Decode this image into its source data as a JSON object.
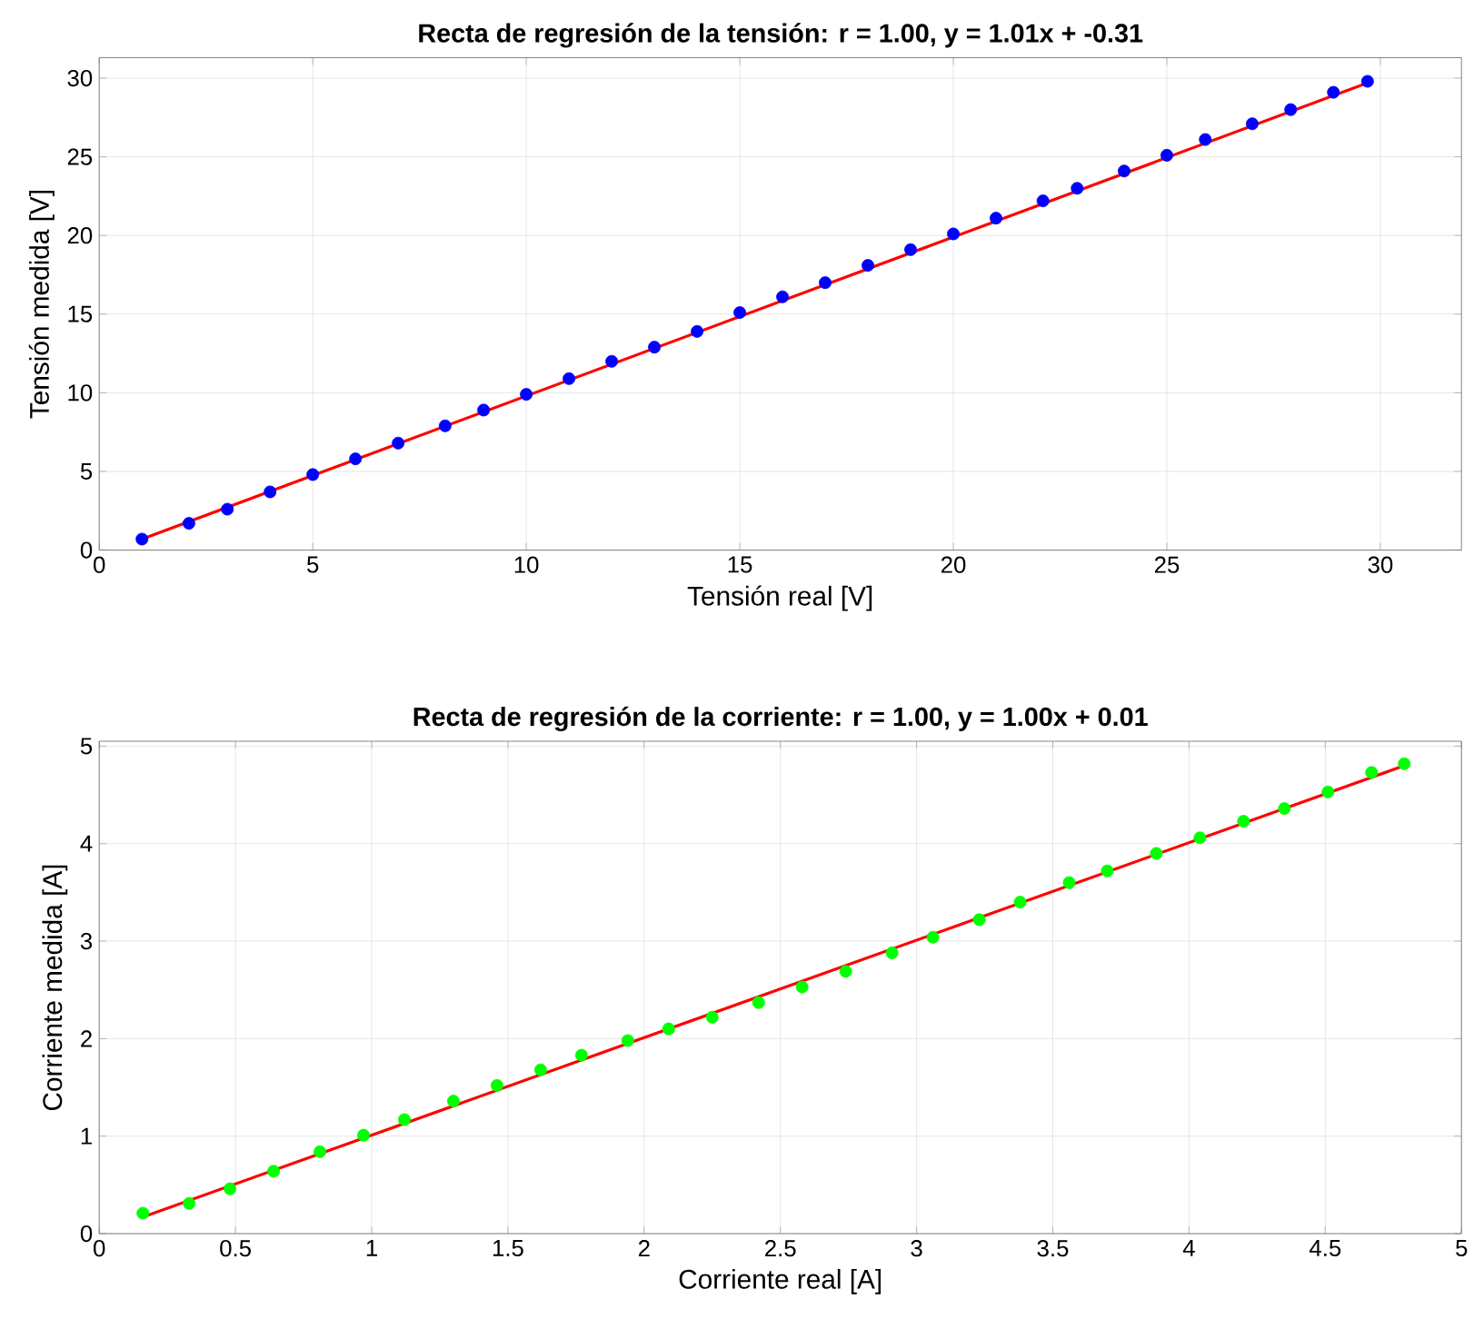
{
  "chart_data": [
    {
      "type": "scatter",
      "title": "Recta de regresión de la tensión: r = 1.00,  y = 1.01x + -0.31",
      "xlabel": "Tensión real [V]",
      "ylabel": "Tensión medida [V]",
      "xlim": [
        0,
        31.9
      ],
      "ylim": [
        0,
        31.3
      ],
      "xticks": [
        0,
        5,
        10,
        15,
        20,
        25,
        30
      ],
      "yticks": [
        0,
        5,
        10,
        15,
        20,
        25,
        30
      ],
      "grid": true,
      "marker": "circle",
      "series": [
        {
          "color": "#0000ff",
          "x": [
            1.0,
            2.1,
            3.0,
            4.0,
            5.0,
            6.0,
            7.0,
            8.1,
            9.0,
            10.0,
            11.0,
            12.0,
            13.0,
            14.0,
            15.0,
            16.0,
            17.0,
            18.0,
            19.0,
            20.0,
            21.0,
            22.1,
            22.9,
            24.0,
            25.0,
            25.9,
            27.0,
            27.9,
            28.9,
            29.7
          ],
          "values": [
            0.7,
            1.7,
            2.6,
            3.7,
            4.8,
            5.8,
            6.8,
            7.9,
            8.9,
            9.9,
            10.9,
            12.0,
            12.9,
            13.9,
            15.1,
            16.1,
            17.0,
            18.1,
            19.1,
            20.1,
            21.1,
            22.2,
            23.0,
            24.1,
            25.1,
            26.1,
            27.1,
            28.0,
            29.1,
            29.8
          ]
        },
        {
          "type": "line",
          "color": "#ff0000",
          "marker": "none",
          "x": [
            1.0,
            29.7
          ],
          "values": [
            0.7,
            29.7
          ]
        }
      ]
    },
    {
      "type": "scatter",
      "title": "Recta de regresión de la corriente: r = 1.00,  y = 1.00x + 0.01",
      "xlabel": "Corriente real [A]",
      "ylabel": "Corriente medida [A]",
      "xlim": [
        0,
        5
      ],
      "ylim": [
        0,
        5.05
      ],
      "xticks": [
        0,
        0.5,
        1,
        1.5,
        2,
        2.5,
        3,
        3.5,
        4,
        4.5,
        5
      ],
      "yticks": [
        0,
        1,
        2,
        3,
        4,
        5
      ],
      "grid": true,
      "marker": "circle",
      "series": [
        {
          "color": "#00ff00",
          "x": [
            0.16,
            0.33,
            0.48,
            0.64,
            0.81,
            0.97,
            1.12,
            1.3,
            1.46,
            1.62,
            1.77,
            1.94,
            2.09,
            2.25,
            2.42,
            2.58,
            2.74,
            2.91,
            3.06,
            3.23,
            3.38,
            3.56,
            3.7,
            3.88,
            4.04,
            4.2,
            4.35,
            4.51,
            4.67,
            4.79
          ],
          "values": [
            0.21,
            0.31,
            0.46,
            0.64,
            0.84,
            1.01,
            1.17,
            1.36,
            1.52,
            1.68,
            1.83,
            1.98,
            2.1,
            2.22,
            2.37,
            2.53,
            2.69,
            2.88,
            3.04,
            3.22,
            3.4,
            3.6,
            3.72,
            3.9,
            4.06,
            4.23,
            4.36,
            4.53,
            4.73,
            4.82
          ]
        },
        {
          "type": "line",
          "color": "#ff0000",
          "marker": "none",
          "x": [
            0.16,
            4.79
          ],
          "values": [
            0.17,
            4.8
          ]
        }
      ]
    }
  ]
}
